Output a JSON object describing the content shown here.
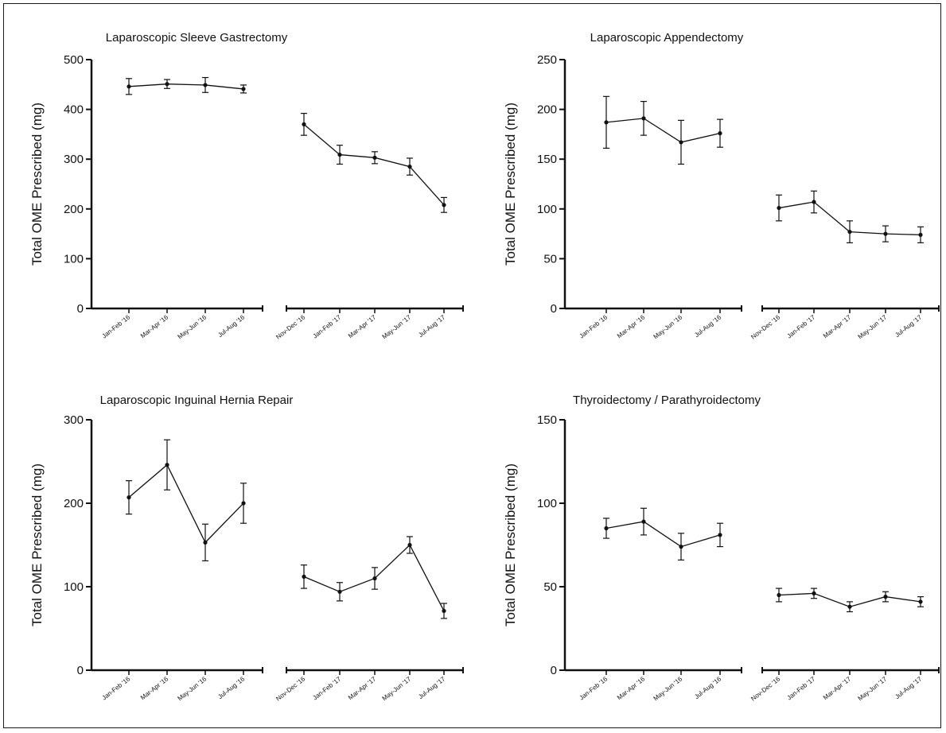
{
  "chart_data": [
    {
      "type": "line",
      "title": "Laparoscopic Sleeve Gastrectomy",
      "ylabel": "Total OME Prescribed (mg)",
      "ylim": [
        0,
        500
      ],
      "yticks": [
        0,
        100,
        200,
        300,
        400,
        500
      ],
      "segments": [
        {
          "categories": [
            "Jan-Feb '16",
            "Mar-Apr '16",
            "May-Jun '16",
            "Jul-Aug '16"
          ],
          "values": [
            446,
            451,
            449,
            441
          ],
          "error": [
            16,
            9,
            15,
            8
          ]
        },
        {
          "categories": [
            "Nov-Dec '16",
            "Jan-Feb '17",
            "Mar-Apr '17",
            "May-Jun '17",
            "Jul-Aug '17"
          ],
          "values": [
            370,
            309,
            303,
            285,
            208
          ],
          "error": [
            22,
            19,
            12,
            17,
            15
          ]
        }
      ]
    },
    {
      "type": "line",
      "title": "Laparoscopic Appendectomy",
      "ylabel": "Total OME Prescribed (mg)",
      "ylim": [
        0,
        250
      ],
      "yticks": [
        0,
        50,
        100,
        150,
        200,
        250
      ],
      "segments": [
        {
          "categories": [
            "Jan-Feb '16",
            "Mar-Apr '16",
            "May-Jun '16",
            "Jul-Aug '16"
          ],
          "values": [
            187,
            191,
            167,
            176
          ],
          "error": [
            26,
            17,
            22,
            14
          ]
        },
        {
          "categories": [
            "Nov-Dec '16",
            "Jan-Feb '17",
            "Mar-Apr '17",
            "May-Jun '17",
            "Jul-Aug '17"
          ],
          "values": [
            101,
            107,
            77,
            75,
            74
          ],
          "error": [
            13,
            11,
            11,
            8,
            8
          ]
        }
      ]
    },
    {
      "type": "line",
      "title": "Laparoscopic Inguinal Hernia Repair",
      "ylabel": "Total OME Prescribed (mg)",
      "ylim": [
        0,
        300
      ],
      "yticks": [
        0,
        100,
        200,
        300
      ],
      "segments": [
        {
          "categories": [
            "Jan-Feb '16",
            "Mar-Apr '16",
            "May-Jun '16",
            "Jul-Aug '16"
          ],
          "values": [
            207,
            246,
            153,
            200
          ],
          "error": [
            20,
            30,
            22,
            24
          ]
        },
        {
          "categories": [
            "Nov-Dec '16",
            "Jan-Feb '17",
            "Mar-Apr '17",
            "May-Jun '17",
            "Jul-Aug '17"
          ],
          "values": [
            112,
            94,
            110,
            150,
            71
          ],
          "error": [
            14,
            11,
            13,
            10,
            9
          ]
        }
      ]
    },
    {
      "type": "line",
      "title": "Thyroidectomy / Parathyroidectomy",
      "ylabel": "Total OME Prescribed (mg)",
      "ylim": [
        0,
        150
      ],
      "yticks": [
        0,
        50,
        100,
        150
      ],
      "segments": [
        {
          "categories": [
            "Jan-Feb '16",
            "Mar-Apr '16",
            "May-Jun '16",
            "Jul-Aug '16"
          ],
          "values": [
            85,
            89,
            74,
            81
          ],
          "error": [
            6,
            8,
            8,
            7
          ]
        },
        {
          "categories": [
            "Nov-Dec '16",
            "Jan-Feb '17",
            "Mar-Apr '17",
            "May-Jun '17",
            "Jul-Aug '17"
          ],
          "values": [
            45,
            46,
            38,
            44,
            41
          ],
          "error": [
            4,
            3,
            3,
            3,
            3
          ]
        }
      ]
    }
  ]
}
